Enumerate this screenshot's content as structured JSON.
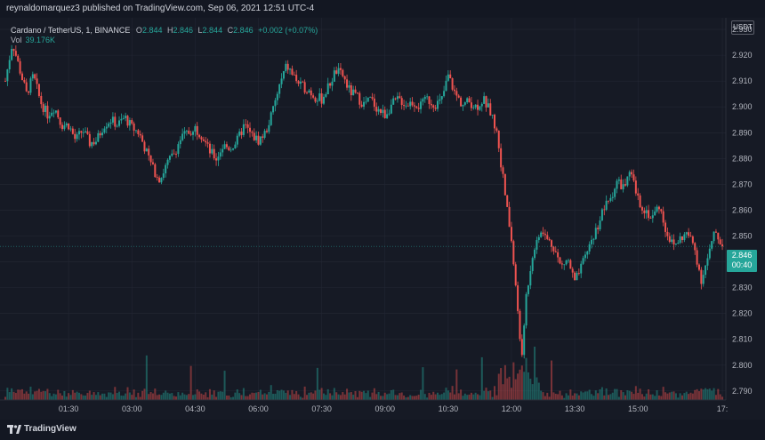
{
  "header": {
    "publisher_line": "reynaldomarquez3 published on TradingView.com, Sep 06, 2021 12:51 UTC-4"
  },
  "legend": {
    "symbol": "Cardano / TetherUS, 1, BINANCE",
    "o_label": "O",
    "o_value": "2.844",
    "h_label": "H",
    "h_value": "2.846",
    "l_label": "L",
    "l_value": "2.844",
    "c_label": "C",
    "c_value": "2.846",
    "change": "+0.002 (+0.07%)",
    "vol_label": "Vol",
    "vol_value": "39.176K"
  },
  "price_axis": {
    "currency": "USDT"
  },
  "last_price": {
    "price": "2.846",
    "countdown": "00:40"
  },
  "footer": {
    "brand": "TradingView"
  },
  "colors": {
    "up": "#26a69a",
    "down": "#ef5350",
    "background": "#161a25",
    "grid": "#232734",
    "text": "#b2b5be"
  },
  "chart_data": {
    "type": "candlestick",
    "title": "Cardano / TetherUS, 1, BINANCE",
    "xlabel": "",
    "ylabel": "",
    "y_ticks": [
      "2.930",
      "2.920",
      "2.910",
      "2.900",
      "2.890",
      "2.880",
      "2.870",
      "2.860",
      "2.850",
      "2.840",
      "2.830",
      "2.820",
      "2.810",
      "2.800",
      "2.790"
    ],
    "x_ticks": [
      "01:30",
      "03:00",
      "04:30",
      "06:00",
      "07:30",
      "09:00",
      "10:30",
      "12:00",
      "13:30",
      "15:00",
      "17:"
    ],
    "ylim": [
      2.7865,
      2.9345
    ],
    "grid": true,
    "close_path": [
      [
        "00:00",
        2.91
      ],
      [
        "00:10",
        2.925
      ],
      [
        "00:20",
        2.915
      ],
      [
        "00:30",
        2.905
      ],
      [
        "00:40",
        2.912
      ],
      [
        "00:50",
        2.902
      ],
      [
        "01:00",
        2.897
      ],
      [
        "01:10",
        2.9
      ],
      [
        "01:20",
        2.893
      ],
      [
        "01:30",
        2.893
      ],
      [
        "01:40",
        2.887
      ],
      [
        "01:50",
        2.891
      ],
      [
        "02:00",
        2.886
      ],
      [
        "02:10",
        2.887
      ],
      [
        "02:20",
        2.893
      ],
      [
        "02:30",
        2.895
      ],
      [
        "02:40",
        2.893
      ],
      [
        "02:50",
        2.896
      ],
      [
        "03:00",
        2.892
      ],
      [
        "03:10",
        2.89
      ],
      [
        "03:20",
        2.883
      ],
      [
        "03:30",
        2.876
      ],
      [
        "03:40",
        2.872
      ],
      [
        "03:50",
        2.878
      ],
      [
        "04:00",
        2.882
      ],
      [
        "04:10",
        2.888
      ],
      [
        "04:20",
        2.89
      ],
      [
        "04:30",
        2.892
      ],
      [
        "04:40",
        2.889
      ],
      [
        "04:50",
        2.883
      ],
      [
        "05:00",
        2.88
      ],
      [
        "05:10",
        2.885
      ],
      [
        "05:20",
        2.884
      ],
      [
        "05:30",
        2.887
      ],
      [
        "05:40",
        2.893
      ],
      [
        "05:50",
        2.889
      ],
      [
        "06:00",
        2.887
      ],
      [
        "06:10",
        2.89
      ],
      [
        "06:20",
        2.898
      ],
      [
        "06:30",
        2.908
      ],
      [
        "06:40",
        2.916
      ],
      [
        "06:50",
        2.912
      ],
      [
        "07:00",
        2.908
      ],
      [
        "07:10",
        2.907
      ],
      [
        "07:20",
        2.904
      ],
      [
        "07:30",
        2.903
      ],
      [
        "07:40",
        2.908
      ],
      [
        "07:50",
        2.914
      ],
      [
        "08:00",
        2.912
      ],
      [
        "08:10",
        2.906
      ],
      [
        "08:20",
        2.904
      ],
      [
        "08:30",
        2.901
      ],
      [
        "08:40",
        2.903
      ],
      [
        "08:50",
        2.899
      ],
      [
        "09:00",
        2.897
      ],
      [
        "09:10",
        2.901
      ],
      [
        "09:20",
        2.903
      ],
      [
        "09:30",
        2.901
      ],
      [
        "09:40",
        2.902
      ],
      [
        "09:50",
        2.9
      ],
      [
        "10:00",
        2.903
      ],
      [
        "10:10",
        2.901
      ],
      [
        "10:20",
        2.902
      ],
      [
        "10:30",
        2.912
      ],
      [
        "10:40",
        2.905
      ],
      [
        "10:50",
        2.901
      ],
      [
        "11:00",
        2.902
      ],
      [
        "11:10",
        2.9
      ],
      [
        "11:20",
        2.903
      ],
      [
        "11:30",
        2.898
      ],
      [
        "11:40",
        2.889
      ],
      [
        "11:50",
        2.868
      ],
      [
        "12:00",
        2.848
      ],
      [
        "12:10",
        2.818
      ],
      [
        "12:15",
        2.802
      ],
      [
        "12:20",
        2.825
      ],
      [
        "12:30",
        2.843
      ],
      [
        "12:40",
        2.852
      ],
      [
        "12:50",
        2.849
      ],
      [
        "13:00",
        2.846
      ],
      [
        "13:10",
        2.838
      ],
      [
        "13:20",
        2.841
      ],
      [
        "13:30",
        2.832
      ],
      [
        "13:40",
        2.838
      ],
      [
        "13:50",
        2.846
      ],
      [
        "14:00",
        2.852
      ],
      [
        "14:10",
        2.86
      ],
      [
        "14:20",
        2.864
      ],
      [
        "14:30",
        2.871
      ],
      [
        "14:40",
        2.869
      ],
      [
        "14:50",
        2.874
      ],
      [
        "15:00",
        2.864
      ],
      [
        "15:10",
        2.86
      ],
      [
        "15:20",
        2.857
      ],
      [
        "15:30",
        2.862
      ],
      [
        "15:40",
        2.852
      ],
      [
        "15:50",
        2.846
      ],
      [
        "16:00",
        2.849
      ],
      [
        "16:10",
        2.851
      ],
      [
        "16:20",
        2.846
      ],
      [
        "16:30",
        2.833
      ],
      [
        "16:40",
        2.842
      ],
      [
        "16:50",
        2.852
      ],
      [
        "17:00",
        2.846
      ]
    ],
    "last": {
      "open": 2.844,
      "high": 2.846,
      "low": 2.844,
      "close": 2.846,
      "change": 0.002,
      "change_pct": 0.07,
      "volume_k": 39.176
    }
  }
}
